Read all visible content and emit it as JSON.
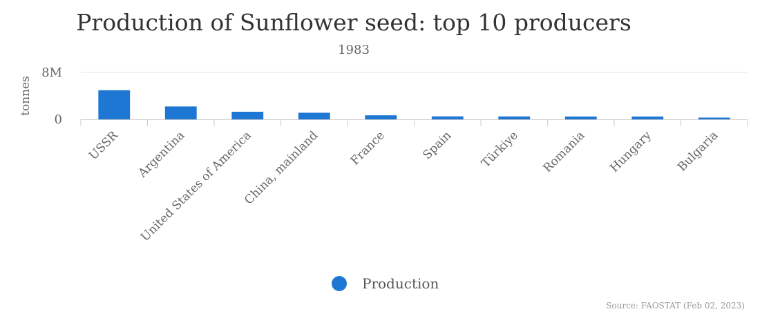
{
  "chart_data": {
    "type": "bar",
    "title": "Production of Sunflower seed: top 10 producers",
    "subtitle": "1983",
    "ylabel": "tonnes",
    "xlabel": "",
    "categories": [
      "USSR",
      "Argentina",
      "United States of America",
      "China, mainland",
      "France",
      "Spain",
      "Türkiye",
      "Romania",
      "Hungary",
      "Bulgaria"
    ],
    "series": [
      {
        "name": "Production",
        "values": [
          4970000,
          2200000,
          1300000,
          1130000,
          690000,
          510000,
          500000,
          490000,
          490000,
          300000
        ]
      }
    ],
    "y_ticks": [
      {
        "value": 0,
        "label": "0"
      },
      {
        "value": 8000000,
        "label": "8M"
      }
    ],
    "ylim": [
      0,
      8000000
    ],
    "grid": true,
    "legend_position": "bottom",
    "bar_color": "#1f77d4",
    "source": "Source: FAOSTAT (Feb 02, 2023)"
  }
}
